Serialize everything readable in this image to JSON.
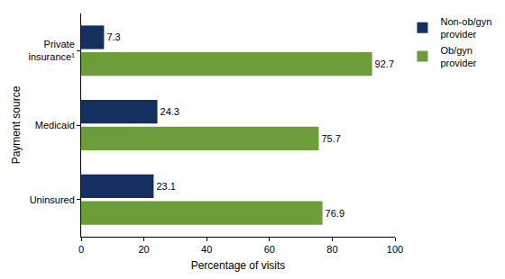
{
  "chart_data": {
    "type": "bar",
    "orientation": "horizontal",
    "categories": [
      "Private insurance¹",
      "Medicaid",
      "Uninsured"
    ],
    "series": [
      {
        "name": "Non-ob/gyn provider",
        "color": "#15305f",
        "values": [
          7.3,
          24.3,
          23.1
        ]
      },
      {
        "name": "Ob/gyn provider",
        "color": "#6c9d3a",
        "values": [
          92.7,
          75.7,
          76.9
        ]
      }
    ],
    "x_label": "Percentage of visits",
    "y_label": "Payment source",
    "xlim": [
      0,
      100
    ],
    "xticks": [
      0,
      20,
      40,
      60,
      80,
      100
    ],
    "grid": false,
    "legend": "top right",
    "data_labels": true
  }
}
